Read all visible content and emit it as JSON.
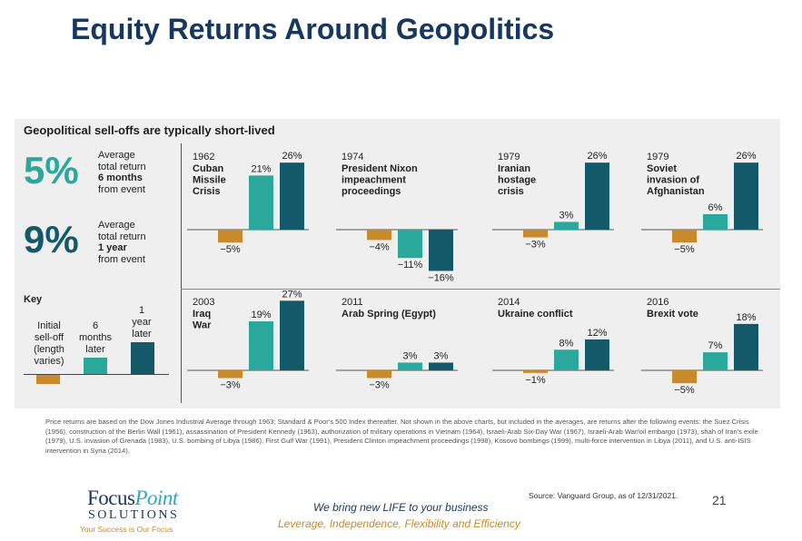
{
  "page": {
    "title": "Equity Returns Around Geopolitics",
    "subtitle": "Geopolitical sell-offs are typically short-lived",
    "page_number": "21",
    "source": "Source: Vanguard Group, as of 12/31/2021."
  },
  "stats": [
    {
      "value": "5%",
      "line1": "Average",
      "line2": "total return",
      "line3": "6 months",
      "line4": "from event"
    },
    {
      "value": "9%",
      "line1": "Average",
      "line2": "total return",
      "line3": "1 year",
      "line4": "from event"
    }
  ],
  "key": {
    "title": "Key",
    "initial": [
      "Initial",
      "sell-off",
      "(length",
      "varies)"
    ],
    "six_months": [
      "6",
      "months",
      "later"
    ],
    "one_year": [
      "1",
      "year",
      "later"
    ]
  },
  "colors": {
    "selloff": "#c98a2c",
    "six_months": "#2aa89b",
    "one_year": "#14596a",
    "title": "#17375e"
  },
  "chart_data": {
    "type": "bar",
    "series_order": [
      "Initial sell-off",
      "6 months later",
      "1 year later"
    ],
    "unit": "%",
    "events": [
      {
        "year": "1962",
        "name": [
          "Cuban",
          "Missile",
          "Crisis"
        ],
        "values": [
          -5,
          21,
          26
        ],
        "labels": [
          "−5%",
          "21%",
          "26%"
        ]
      },
      {
        "year": "1974",
        "name": [
          "President Nixon",
          "impeachment",
          "proceedings"
        ],
        "values": [
          -4,
          -11,
          -16
        ],
        "labels": [
          "−4%",
          "−11%",
          "−16%"
        ]
      },
      {
        "year": "1979",
        "name": [
          "Iranian",
          "hostage",
          "crisis"
        ],
        "values": [
          -3,
          3,
          26
        ],
        "labels": [
          "−3%",
          "3%",
          "26%"
        ]
      },
      {
        "year": "1979",
        "name": [
          "Soviet",
          "invasion of",
          "Afghanistan"
        ],
        "values": [
          -5,
          6,
          26
        ],
        "labels": [
          "−5%",
          "6%",
          "26%"
        ]
      },
      {
        "year": "2003",
        "name": [
          "Iraq",
          "War"
        ],
        "values": [
          -3,
          19,
          27
        ],
        "labels": [
          "−3%",
          "19%",
          "27%"
        ]
      },
      {
        "year": "2011",
        "name": [
          "Arab Spring (Egypt)"
        ],
        "values": [
          -3,
          3,
          3
        ],
        "labels": [
          "−3%",
          "3%",
          "3%"
        ]
      },
      {
        "year": "2014",
        "name": [
          "Ukraine conflict"
        ],
        "values": [
          -1,
          8,
          12
        ],
        "labels": [
          "−1%",
          "8%",
          "12%"
        ]
      },
      {
        "year": "2016",
        "name": [
          "Brexit vote"
        ],
        "values": [
          -5,
          7,
          18
        ],
        "labels": [
          "−5%",
          "7%",
          "18%"
        ]
      }
    ]
  },
  "footnote": "Price returns are based on the Dow Jones Industrial Average through 1963; Standard & Poor's 500 Index thereafter. Not shown in the above charts, but included in the averages, are returns after the following events: the Suez Crisis (1956), construction of the Berlin Wall (1961), assassination of President Kennedy (1963), authorization of military operations in Vietnam (1964), Israeli-Arab Six-Day War (1967), Israeli-Arab War/oil embargo (1973), shah of Iran's exile (1979), U.S. invasion of Grenada (1983), U.S. bombing of Libya (1986), First Gulf War (1991), President Clinton impeachment proceedings (1998), Kosovo bombings (1999), multi-force intervention in Libya (2011), and U.S. anti-ISIS intervention in Syria (2014).",
  "logo": {
    "focus": "Focus",
    "point": "Point",
    "solutions": "SOLUTIONS",
    "tag": "Your Success is Our Focus"
  },
  "taglines": [
    "We bring new LIFE to your business",
    "Leverage, Independence, Flexibility and Efficiency"
  ]
}
